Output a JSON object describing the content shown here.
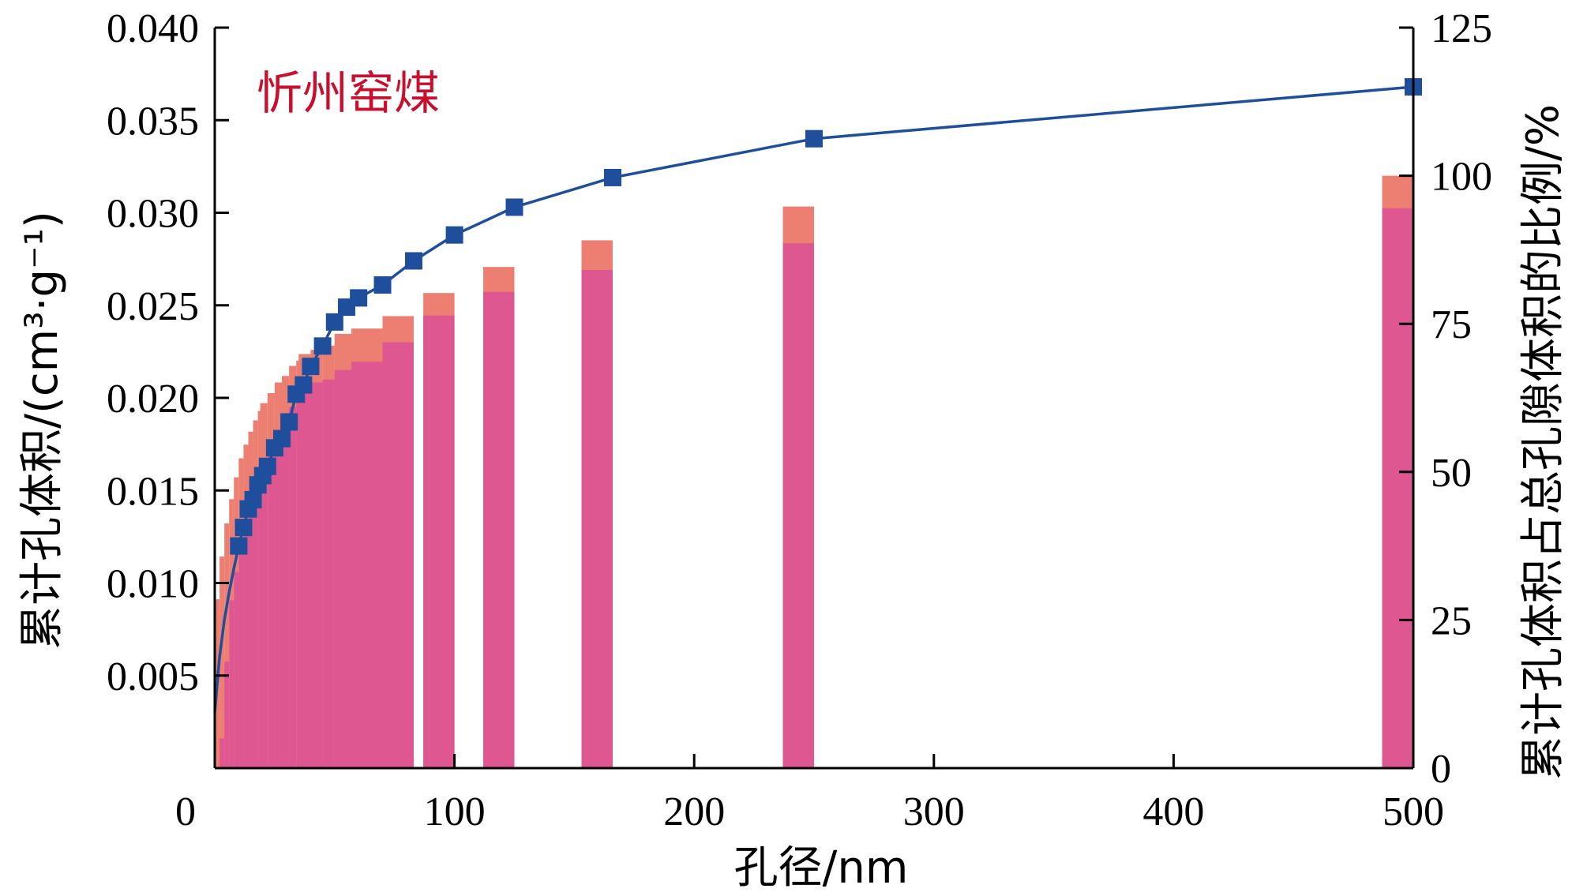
{
  "chart_data": {
    "type": "bar+line",
    "annotation": "忻州窑煤",
    "xlabel": "孔径/nm",
    "ylabel_left": "累计孔体积/(cm³·g⁻¹)",
    "ylabel_right": "累计孔体积占总孔隙体积的比例/%",
    "x_ticks": [
      "0",
      "100",
      "200",
      "300",
      "400",
      "500"
    ],
    "y_left_ticks": [
      "0.005",
      "0.010",
      "0.015",
      "0.020",
      "0.025",
      "0.030",
      "0.035",
      "0.040"
    ],
    "y_right_ticks": [
      "0",
      "25",
      "50",
      "75",
      "100",
      "125"
    ],
    "x_range": [
      0,
      500
    ],
    "y_left_range": [
      0,
      0.04
    ],
    "y_right_range": [
      0,
      125
    ],
    "colors": {
      "line": "#1f4e9c",
      "marker": "#1f4e9c",
      "bar_back": "#ec7f72",
      "bar_front": "#de5790",
      "annotation": "#c8102e"
    },
    "line_series": {
      "marker": "square",
      "x": [
        0,
        2,
        4,
        6,
        8,
        10,
        12,
        14,
        16,
        18,
        20,
        22,
        25,
        28,
        31,
        34,
        37,
        40,
        45,
        50,
        55,
        60,
        70,
        83,
        100,
        125,
        166,
        250,
        500
      ],
      "y": [
        0.003,
        0.006,
        0.008,
        0.0095,
        0.0108,
        0.012,
        0.013,
        0.014,
        0.0145,
        0.0153,
        0.0158,
        0.0163,
        0.0173,
        0.0178,
        0.0187,
        0.0202,
        0.0207,
        0.0217,
        0.0228,
        0.0241,
        0.0249,
        0.0254,
        0.0261,
        0.0274,
        0.0288,
        0.0303,
        0.0319,
        0.034,
        0.0368
      ]
    },
    "bar_series": {
      "x": [
        2,
        4,
        6,
        8,
        10,
        12,
        14,
        16,
        18,
        20,
        22,
        25,
        28,
        31,
        34,
        37,
        40,
        45,
        50,
        55,
        60,
        70,
        83,
        100,
        125,
        166,
        250,
        500
      ],
      "back_percent": [
        28.5,
        35.7,
        41.3,
        45.4,
        49.1,
        52.3,
        54.6,
        56.8,
        58.7,
        60.3,
        61.6,
        63.3,
        65.1,
        66.2,
        67.9,
        68.8,
        69.9,
        70.6,
        71.3,
        72.6,
        73.3,
        74.2,
        76.3,
        80.2,
        84.6,
        89.1,
        94.8,
        100
      ],
      "front_percent": [
        0,
        5,
        18,
        28.3,
        33.1,
        38.1,
        41.4,
        44.7,
        47.9,
        49.7,
        52.3,
        54.5,
        56.8,
        59.7,
        61.0,
        62.3,
        63.5,
        65.1,
        65.6,
        66.9,
        67.2,
        68.6,
        71.9,
        76.4,
        80.4,
        84.1,
        88.6,
        94.5
      ]
    }
  }
}
